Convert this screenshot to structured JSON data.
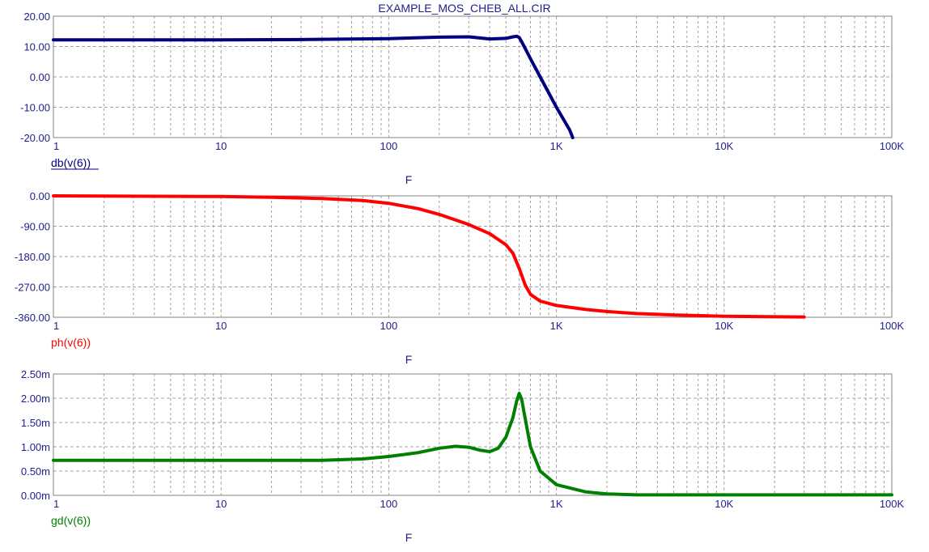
{
  "title": "EXAMPLE_MOS_CHEB_ALL.CIR",
  "colors": {
    "axis_text": "#1e1e8c",
    "grid": "#a0a0a0",
    "frame": "#808080"
  },
  "chart_data": [
    {
      "type": "line",
      "x_scale": "log",
      "xlim": [
        1,
        100000
      ],
      "ylim": [
        -20,
        20
      ],
      "y_ticks": [
        "20.00",
        "10.00",
        "0.00",
        "-10.00",
        "-20.00"
      ],
      "x_ticks": [
        "1",
        "10",
        "100",
        "1K",
        "10K",
        "100K"
      ],
      "xlabel": "F",
      "series": [
        {
          "name": "db(v(6))",
          "color": "#000080",
          "x": [
            1,
            10,
            30,
            100,
            200,
            300,
            400,
            500,
            550,
            580,
            600,
            620,
            650,
            700,
            800,
            1000,
            1200,
            1250
          ],
          "y": [
            12.2,
            12.2,
            12.3,
            12.6,
            13.1,
            13.2,
            12.5,
            12.7,
            13.2,
            13.4,
            13.0,
            11.6,
            9.5,
            6.0,
            0.0,
            -10.0,
            -17.5,
            -20.0
          ]
        }
      ]
    },
    {
      "type": "line",
      "x_scale": "log",
      "xlim": [
        1,
        100000
      ],
      "ylim": [
        -360,
        0
      ],
      "y_ticks": [
        "0.00",
        "-90.00",
        "-180.00",
        "-270.00",
        "-360.00"
      ],
      "x_ticks": [
        "1",
        "10",
        "100",
        "1K",
        "10K",
        "100K"
      ],
      "xlabel": "F",
      "series": [
        {
          "name": "ph(v(6))",
          "color": "#ff0000",
          "x": [
            1,
            10,
            20,
            40,
            70,
            100,
            150,
            200,
            300,
            400,
            500,
            550,
            600,
            650,
            700,
            800,
            1000,
            1500,
            2000,
            3000,
            5000,
            10000,
            18000,
            30000
          ],
          "y": [
            0,
            -2,
            -4,
            -8,
            -14,
            -22,
            -38,
            -55,
            -85,
            -112,
            -145,
            -170,
            -215,
            -263,
            -292,
            -312,
            -325,
            -337,
            -343,
            -349,
            -353,
            -357,
            -358,
            -359
          ]
        }
      ]
    },
    {
      "type": "line",
      "x_scale": "log",
      "xlim": [
        1,
        100000
      ],
      "ylim": [
        0,
        0.0025
      ],
      "y_ticks": [
        "2.50m",
        "2.00m",
        "1.50m",
        "1.00m",
        "0.50m",
        "0.00m"
      ],
      "x_ticks": [
        "1",
        "10",
        "100",
        "1K",
        "10K",
        "100K"
      ],
      "xlabel": "F",
      "series": [
        {
          "name": "gd(v(6))",
          "color": "#008000",
          "x": [
            1,
            10,
            40,
            70,
            100,
            150,
            200,
            250,
            300,
            350,
            400,
            450,
            500,
            550,
            580,
            600,
            620,
            650,
            700,
            800,
            1000,
            1500,
            2000,
            3000,
            5000,
            10000,
            100000
          ],
          "y": [
            0.00072,
            0.00072,
            0.00072,
            0.00075,
            0.0008,
            0.00088,
            0.00097,
            0.00101,
            0.00099,
            0.00093,
            0.0009,
            0.00097,
            0.0012,
            0.0016,
            0.00195,
            0.0021,
            0.00198,
            0.0016,
            0.001,
            0.0005,
            0.00022,
            7e-05,
            3e-05,
            1e-05,
            1e-05,
            1e-05,
            1e-05
          ]
        }
      ]
    }
  ]
}
